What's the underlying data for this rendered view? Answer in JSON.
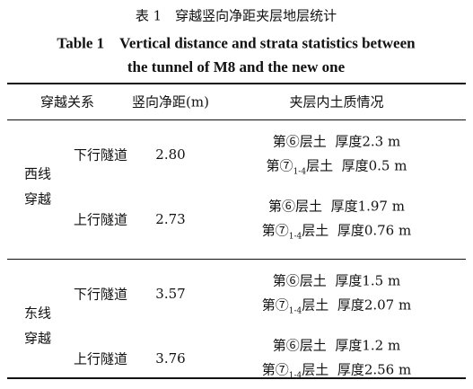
{
  "caption": {
    "cn": "表 1　穿越竖向净距夹层地层统计",
    "en_line1": "Table 1　Vertical distance and strata statistics between",
    "en_line2": "the tunnel of M8 and the new one"
  },
  "table": {
    "header": [
      "穿越关系",
      "竖向净距(m)",
      "夹层内土质情况"
    ],
    "groups": [
      {
        "label": [
          "西线",
          "穿越"
        ],
        "rows": [
          {
            "tunnel": "下行隧道",
            "distance": "2.80",
            "strata": [
              {
                "pre": "第⑥层土  厚度2.3 m"
              },
              {
                "pre": "第⑦",
                "sub": "1-4",
                "post": "层土  厚度0.5 m"
              }
            ]
          },
          {
            "tunnel": "上行隧道",
            "distance": "2.73",
            "strata": [
              {
                "pre": "第⑥层土  厚度1.97 m"
              },
              {
                "pre": "第⑦",
                "sub": "1-4",
                "post": "层土  厚度0.76 m"
              }
            ]
          }
        ]
      },
      {
        "label": [
          "东线",
          "穿越"
        ],
        "rows": [
          {
            "tunnel": "下行隧道",
            "distance": "3.57",
            "strata": [
              {
                "pre": "第⑥层土  厚度1.5 m"
              },
              {
                "pre": "第⑦",
                "sub": "1-4",
                "post": "层土  厚度2.07 m"
              }
            ]
          },
          {
            "tunnel": "上行隧道",
            "distance": "3.76",
            "strata": [
              {
                "pre": "第⑥层土  厚度1.2 m"
              },
              {
                "pre": "第⑦",
                "sub": "1-4",
                "post": "层土  厚度2.56 m"
              }
            ]
          }
        ]
      }
    ]
  }
}
